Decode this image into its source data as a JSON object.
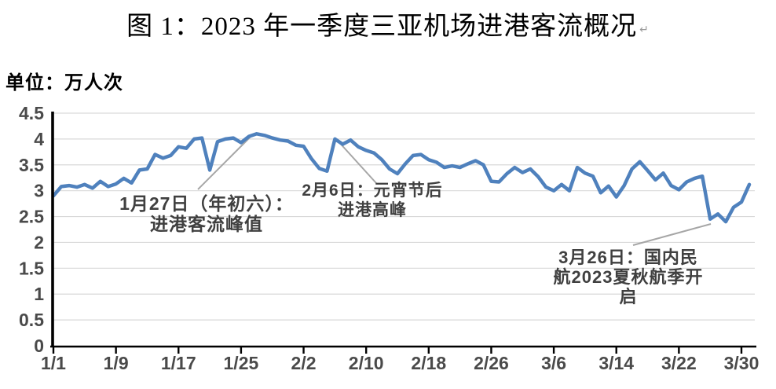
{
  "title": {
    "text": "图 1：2023 年一季度三亚机场进港客流概况",
    "paragraph_mark": "↵"
  },
  "unit_label": "单位：万人次",
  "chart_data": {
    "type": "line",
    "title": "图 1：2023 年一季度三亚机场进港客流概况",
    "ylabel": "单位：万人次",
    "xlabel": "",
    "ylim": [
      0,
      4.5
    ],
    "ytick_interval": 0.5,
    "ytick_labels": [
      "0",
      "0.5",
      "1",
      "1.5",
      "2",
      "2.5",
      "3",
      "3.5",
      "4",
      "4.5"
    ],
    "x_tick_labels": [
      "1/1",
      "1/9",
      "1/17",
      "1/25",
      "2/2",
      "2/10",
      "2/18",
      "2/26",
      "3/6",
      "3/14",
      "3/22",
      "3/30"
    ],
    "x_tick_every_days": 8,
    "grid": "horizontal",
    "legend": "none",
    "line_color": "#4f81bd",
    "leader_line_color": "#a6a6a6",
    "series": [
      {
        "name": "三亚机场进港客流",
        "dates": [
          "1/1",
          "1/2",
          "1/3",
          "1/4",
          "1/5",
          "1/6",
          "1/7",
          "1/8",
          "1/9",
          "1/10",
          "1/11",
          "1/12",
          "1/13",
          "1/14",
          "1/15",
          "1/16",
          "1/17",
          "1/18",
          "1/19",
          "1/20",
          "1/21",
          "1/22",
          "1/23",
          "1/24",
          "1/25",
          "1/26",
          "1/27",
          "1/28",
          "1/29",
          "1/30",
          "1/31",
          "2/1",
          "2/2",
          "2/3",
          "2/4",
          "2/5",
          "2/6",
          "2/7",
          "2/8",
          "2/9",
          "2/10",
          "2/11",
          "2/12",
          "2/13",
          "2/14",
          "2/15",
          "2/16",
          "2/17",
          "2/18",
          "2/19",
          "2/20",
          "2/21",
          "2/22",
          "2/23",
          "2/24",
          "2/25",
          "2/26",
          "2/27",
          "2/28",
          "3/1",
          "3/2",
          "3/3",
          "3/4",
          "3/5",
          "3/6",
          "3/7",
          "3/8",
          "3/9",
          "3/10",
          "3/11",
          "3/12",
          "3/13",
          "3/14",
          "3/15",
          "3/16",
          "3/17",
          "3/18",
          "3/19",
          "3/20",
          "3/21",
          "3/22",
          "3/23",
          "3/24",
          "3/25",
          "3/26",
          "3/27",
          "3/28",
          "3/29",
          "3/30",
          "3/31"
        ],
        "values": [
          2.9,
          3.08,
          3.1,
          3.07,
          3.12,
          3.05,
          3.18,
          3.08,
          3.13,
          3.24,
          3.15,
          3.4,
          3.42,
          3.7,
          3.63,
          3.68,
          3.85,
          3.82,
          4.0,
          4.02,
          3.4,
          3.95,
          4.0,
          4.02,
          3.93,
          4.05,
          4.1,
          4.07,
          4.02,
          3.98,
          3.96,
          3.88,
          3.86,
          3.62,
          3.43,
          3.38,
          4.0,
          3.9,
          3.98,
          3.85,
          3.78,
          3.73,
          3.6,
          3.42,
          3.33,
          3.52,
          3.68,
          3.7,
          3.6,
          3.55,
          3.45,
          3.48,
          3.45,
          3.52,
          3.58,
          3.5,
          3.18,
          3.17,
          3.33,
          3.45,
          3.35,
          3.42,
          3.27,
          3.07,
          3.0,
          3.12,
          3.0,
          3.45,
          3.34,
          3.28,
          2.96,
          3.09,
          2.88,
          3.1,
          3.42,
          3.56,
          3.39,
          3.21,
          3.34,
          3.1,
          3.02,
          3.17,
          3.24,
          3.28,
          2.45,
          2.55,
          2.4,
          2.68,
          2.78,
          3.12
        ]
      }
    ],
    "annotations": [
      {
        "lines": [
          "1月27日（年初六）：",
          "进港客流峰值"
        ],
        "points_to_date": "1/27"
      },
      {
        "lines": [
          "2月6日：元宵节后",
          "进港高峰"
        ],
        "points_to_date": "2/6"
      },
      {
        "lines": [
          "3月26日：国内民",
          "航2023夏秋航季开",
          "启"
        ],
        "points_to_date": "3/26"
      }
    ]
  }
}
